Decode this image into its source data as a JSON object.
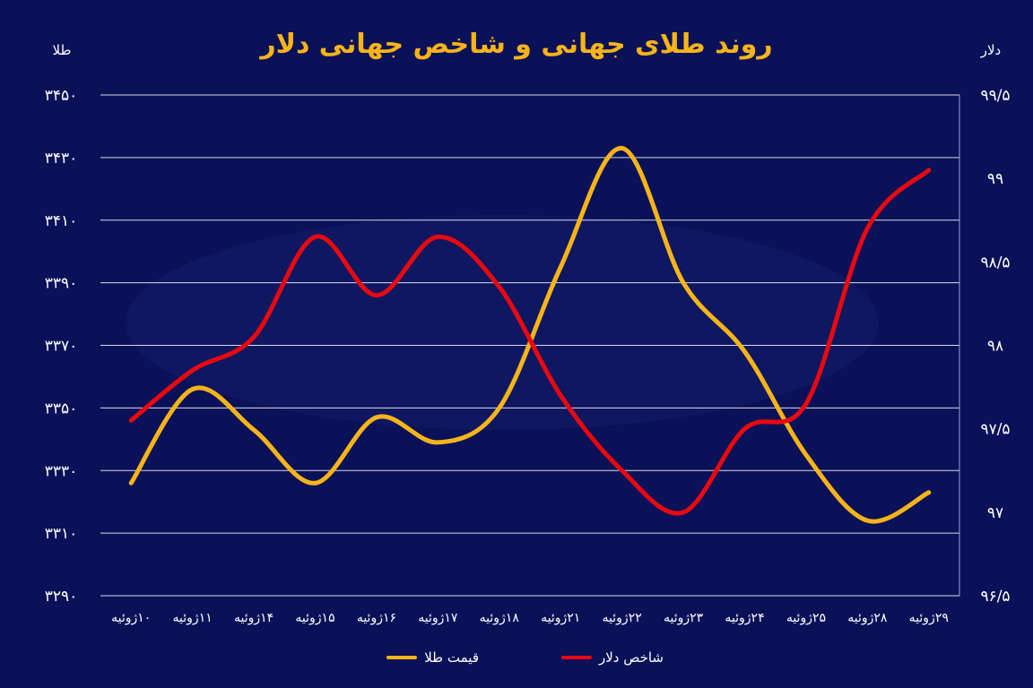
{
  "chart_data": {
    "type": "line",
    "title": "روند طلای جهانی و شاخص جهانی دلار",
    "ylabel": "طلا",
    "y2label": "دلار",
    "categories": [
      "۱۰ژوئیه",
      "۱۱ژوئیه",
      "۱۴ژوئیه",
      "۱۵ژوئیه",
      "۱۶ژوئیه",
      "۱۷ژوئیه",
      "۱۸ژوئیه",
      "۲۱ژوئیه",
      "۲۲ژوئیه",
      "۲۳ژوئیه",
      "۲۴ژوئیه",
      "۲۵ژوئیه",
      "۲۸ژوئیه",
      "۲۹ژوئیه"
    ],
    "ylim": [
      3290,
      3450
    ],
    "y2lim": [
      96.5,
      99.5
    ],
    "yticks": [
      3290,
      3310,
      3330,
      3350,
      3370,
      3390,
      3410,
      3430,
      3450
    ],
    "ytick_labels": [
      "۳۲۹۰",
      "۳۳۱۰",
      "۳۳۳۰",
      "۳۳۵۰",
      "۳۳۷۰",
      "۳۳۹۰",
      "۳۴۱۰",
      "۳۴۳۰",
      "۳۴۵۰"
    ],
    "y2ticks": [
      96.5,
      97,
      97.5,
      98,
      98.5,
      99,
      99.5
    ],
    "y2tick_labels": [
      "۹۶/۵",
      "۹۷",
      "۹۷/۵",
      "۹۸",
      "۹۸/۵",
      "۹۹",
      "۹۹/۵"
    ],
    "grid": true,
    "legend_position": "bottom",
    "series": [
      {
        "name": "قیمت طلا",
        "axis": "left",
        "color": "#f7b419",
        "values": [
          3326,
          3356,
          3343,
          3326,
          3347,
          3339,
          3350,
          3395,
          3433,
          3390,
          3368,
          3335,
          3314,
          3323
        ]
      },
      {
        "name": "شاخص دلار",
        "axis": "right",
        "color": "#e8090f",
        "values": [
          97.55,
          97.85,
          98.05,
          98.65,
          98.3,
          98.65,
          98.35,
          97.7,
          97.25,
          97.0,
          97.5,
          97.65,
          98.7,
          99.05
        ]
      }
    ]
  }
}
